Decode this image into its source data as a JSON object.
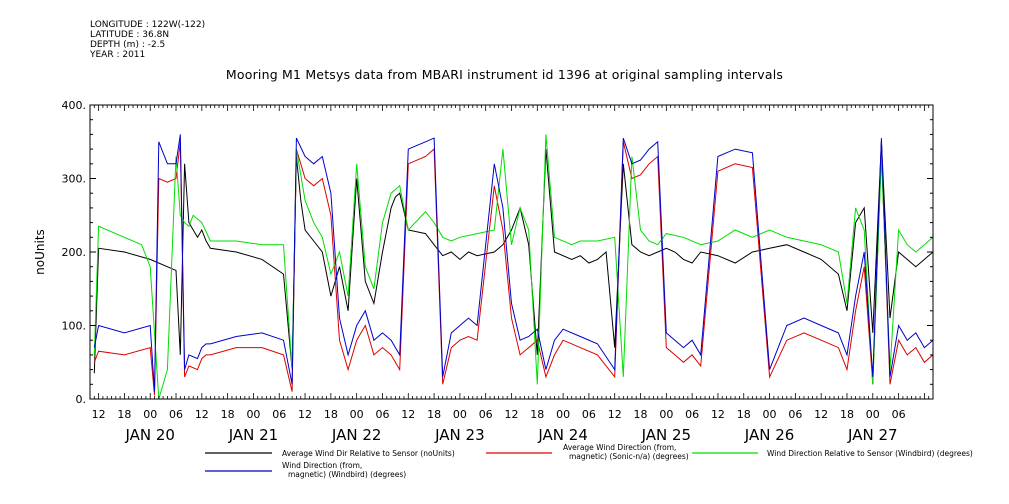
{
  "metadata": {
    "longitude": "LONGITUDE : 122W(-122)",
    "latitude": "LATITUDE : 36.8N",
    "depth": "DEPTH (m) : -2.5",
    "year": "YEAR : 2011"
  },
  "chart_data": {
    "type": "line",
    "title": "Mooring M1 Metsys data from MBARI instrument id 1396 at original sampling intervals",
    "ylabel": "noUnits",
    "xlabel": "",
    "ylim": [
      0,
      400
    ],
    "y_ticks": [
      0,
      100,
      200,
      300,
      400
    ],
    "y_tick_labels": [
      "0.",
      "100.",
      "200.",
      "300.",
      "400."
    ],
    "x_range_hours": [
      -14,
      182
    ],
    "x_note": "hours relative to 2011-01-20 00:00",
    "day_labels": [
      "JAN 20",
      "JAN 21",
      "JAN 22",
      "JAN 23",
      "JAN 24",
      "JAN 25",
      "JAN 26",
      "JAN 27"
    ],
    "hour_labels": [
      "12",
      "18",
      "00",
      "06",
      "12",
      "18",
      "00",
      "06",
      "12",
      "18",
      "00",
      "06",
      "12",
      "18",
      "00",
      "06",
      "12",
      "18",
      "00",
      "06",
      "12",
      "18",
      "00",
      "06",
      "12",
      "18",
      "00",
      "06",
      "12",
      "18",
      "00",
      "06"
    ],
    "grid": false,
    "legend_position": "bottom",
    "series": [
      {
        "name": "Average Wind Dir Relative to Sensor (noUnits)",
        "color": "#000000",
        "x": [
          -13,
          -12,
          -6,
          0,
          6,
          7,
          8,
          9,
          11,
          12,
          13,
          14,
          20,
          26,
          31,
          33,
          34,
          35,
          36,
          38,
          40,
          42,
          44,
          46,
          48,
          50,
          52,
          54,
          56,
          57,
          58,
          60,
          64,
          66,
          68,
          70,
          72,
          74,
          76,
          80,
          82,
          84,
          86,
          88,
          90,
          92,
          94,
          98,
          100,
          102,
          104,
          106,
          108,
          110,
          112,
          114,
          116,
          118,
          120,
          122,
          124,
          126,
          128,
          132,
          136,
          140,
          144,
          148,
          152,
          156,
          160,
          162,
          164,
          166,
          168,
          170,
          172,
          174,
          176,
          178,
          180,
          182
        ],
        "y": [
          35,
          205,
          200,
          190,
          175,
          60,
          320,
          240,
          220,
          230,
          215,
          205,
          200,
          190,
          170,
          40,
          330,
          270,
          230,
          215,
          200,
          140,
          180,
          120,
          300,
          160,
          130,
          200,
          260,
          275,
          280,
          230,
          225,
          210,
          195,
          200,
          190,
          200,
          195,
          200,
          210,
          230,
          260,
          210,
          60,
          340,
          200,
          190,
          195,
          185,
          190,
          200,
          70,
          320,
          210,
          200,
          195,
          200,
          205,
          200,
          190,
          185,
          200,
          195,
          185,
          200,
          205,
          210,
          200,
          190,
          170,
          120,
          240,
          260,
          90,
          350,
          110,
          200,
          190,
          180,
          190,
          200
        ]
      },
      {
        "name": "Average Wind Direction (from, magnetic) (Sonic-n/a) (degrees)",
        "color": "#dd0000",
        "x": [
          -13,
          -12,
          -6,
          0,
          1,
          2,
          4,
          6,
          7,
          8,
          9,
          11,
          12,
          13,
          14,
          20,
          26,
          31,
          33,
          34,
          36,
          38,
          40,
          42,
          44,
          46,
          48,
          50,
          52,
          54,
          56,
          58,
          60,
          64,
          66,
          68,
          70,
          72,
          74,
          76,
          80,
          82,
          84,
          86,
          88,
          90,
          92,
          94,
          96,
          100,
          104,
          108,
          110,
          112,
          114,
          116,
          118,
          120,
          122,
          124,
          126,
          128,
          132,
          136,
          140,
          144,
          148,
          152,
          156,
          160,
          162,
          164,
          166,
          168,
          170,
          172,
          174,
          176,
          178,
          180,
          182
        ],
        "y": [
          50,
          65,
          60,
          70,
          5,
          300,
          295,
          300,
          350,
          30,
          45,
          40,
          55,
          60,
          60,
          70,
          70,
          60,
          10,
          340,
          300,
          290,
          300,
          250,
          80,
          40,
          80,
          100,
          60,
          70,
          60,
          40,
          320,
          330,
          340,
          20,
          70,
          80,
          85,
          80,
          290,
          230,
          110,
          60,
          70,
          80,
          30,
          60,
          80,
          70,
          60,
          30,
          350,
          300,
          305,
          320,
          330,
          70,
          60,
          50,
          60,
          45,
          310,
          320,
          315,
          30,
          80,
          90,
          80,
          70,
          40,
          120,
          180,
          20,
          340,
          20,
          80,
          60,
          70,
          50,
          60
        ]
      },
      {
        "name": "Wind Direction Relative to Sensor (Windbird) (degrees)",
        "color": "#00dd00",
        "x": [
          -13,
          -12,
          -6,
          -2,
          0,
          2,
          4,
          6,
          7,
          8,
          9,
          10,
          12,
          14,
          20,
          26,
          31,
          33,
          34,
          36,
          38,
          40,
          42,
          44,
          46,
          48,
          50,
          52,
          54,
          56,
          58,
          60,
          64,
          66,
          68,
          70,
          72,
          76,
          80,
          82,
          84,
          86,
          88,
          90,
          92,
          94,
          98,
          100,
          104,
          108,
          110,
          112,
          114,
          116,
          118,
          120,
          124,
          128,
          132,
          136,
          140,
          144,
          148,
          152,
          156,
          160,
          162,
          164,
          166,
          168,
          170,
          172,
          174,
          176,
          178,
          180,
          182
        ],
        "y": [
          60,
          235,
          220,
          210,
          180,
          0,
          40,
          330,
          250,
          240,
          235,
          250,
          240,
          215,
          215,
          210,
          210,
          40,
          340,
          270,
          240,
          220,
          170,
          200,
          140,
          320,
          180,
          150,
          240,
          280,
          290,
          230,
          255,
          240,
          220,
          215,
          220,
          225,
          230,
          340,
          210,
          260,
          230,
          20,
          360,
          220,
          210,
          215,
          215,
          220,
          30,
          330,
          230,
          215,
          210,
          225,
          220,
          210,
          215,
          230,
          220,
          230,
          220,
          215,
          210,
          200,
          130,
          260,
          230,
          20,
          330,
          40,
          230,
          210,
          200,
          210,
          220
        ]
      },
      {
        "name": "Wind Direction (from, magnetic) (Windbird) (degrees)",
        "color": "#0000cc",
        "x": [
          -13,
          -12,
          -6,
          0,
          1,
          2,
          4,
          6,
          7,
          8,
          9,
          11,
          12,
          13,
          14,
          20,
          26,
          31,
          33,
          34,
          36,
          38,
          40,
          42,
          44,
          46,
          48,
          50,
          52,
          54,
          56,
          58,
          60,
          64,
          66,
          68,
          70,
          72,
          74,
          76,
          80,
          82,
          84,
          86,
          88,
          90,
          92,
          94,
          96,
          100,
          104,
          108,
          110,
          112,
          114,
          116,
          118,
          120,
          122,
          124,
          126,
          128,
          132,
          136,
          140,
          144,
          148,
          152,
          156,
          160,
          162,
          164,
          166,
          168,
          170,
          172,
          174,
          176,
          178,
          180,
          182
        ],
        "y": [
          70,
          100,
          90,
          100,
          10,
          350,
          320,
          320,
          360,
          40,
          60,
          55,
          70,
          75,
          75,
          85,
          90,
          80,
          20,
          355,
          330,
          320,
          330,
          280,
          110,
          60,
          100,
          120,
          80,
          90,
          80,
          60,
          340,
          350,
          355,
          30,
          90,
          100,
          110,
          100,
          320,
          260,
          130,
          80,
          85,
          95,
          40,
          80,
          95,
          85,
          75,
          40,
          355,
          320,
          325,
          340,
          350,
          90,
          80,
          70,
          80,
          60,
          330,
          340,
          335,
          40,
          100,
          110,
          100,
          90,
          60,
          140,
          200,
          30,
          355,
          30,
          100,
          80,
          90,
          70,
          80
        ]
      }
    ]
  }
}
